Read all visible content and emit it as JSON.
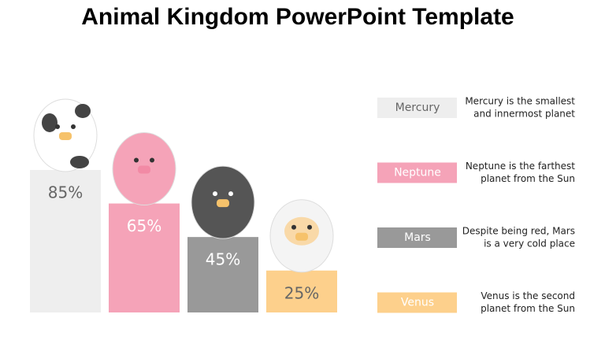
{
  "chart_data": {
    "type": "bar",
    "title": "Animal Kingdom PowerPoint Template",
    "categories": [
      "Mercury",
      "Neptune",
      "Mars",
      "Venus"
    ],
    "values": [
      85,
      65,
      45,
      25
    ],
    "value_labels": [
      "85%",
      "65%",
      "45%",
      "25%"
    ],
    "colors": [
      "#eeeeee",
      "#f5a3b8",
      "#999999",
      "#fdd08c"
    ],
    "label_colors": [
      "#666666",
      "#ffffff",
      "#ffffff",
      "#666666"
    ],
    "descriptions": [
      [
        "Mercury is the smallest",
        "and innermost planet"
      ],
      [
        "Neptune is the farthest",
        "planet from the Sun"
      ],
      [
        "Despite being red, Mars",
        "is a very cold place"
      ],
      [
        "Venus is the second",
        "planet from the Sun"
      ]
    ]
  }
}
